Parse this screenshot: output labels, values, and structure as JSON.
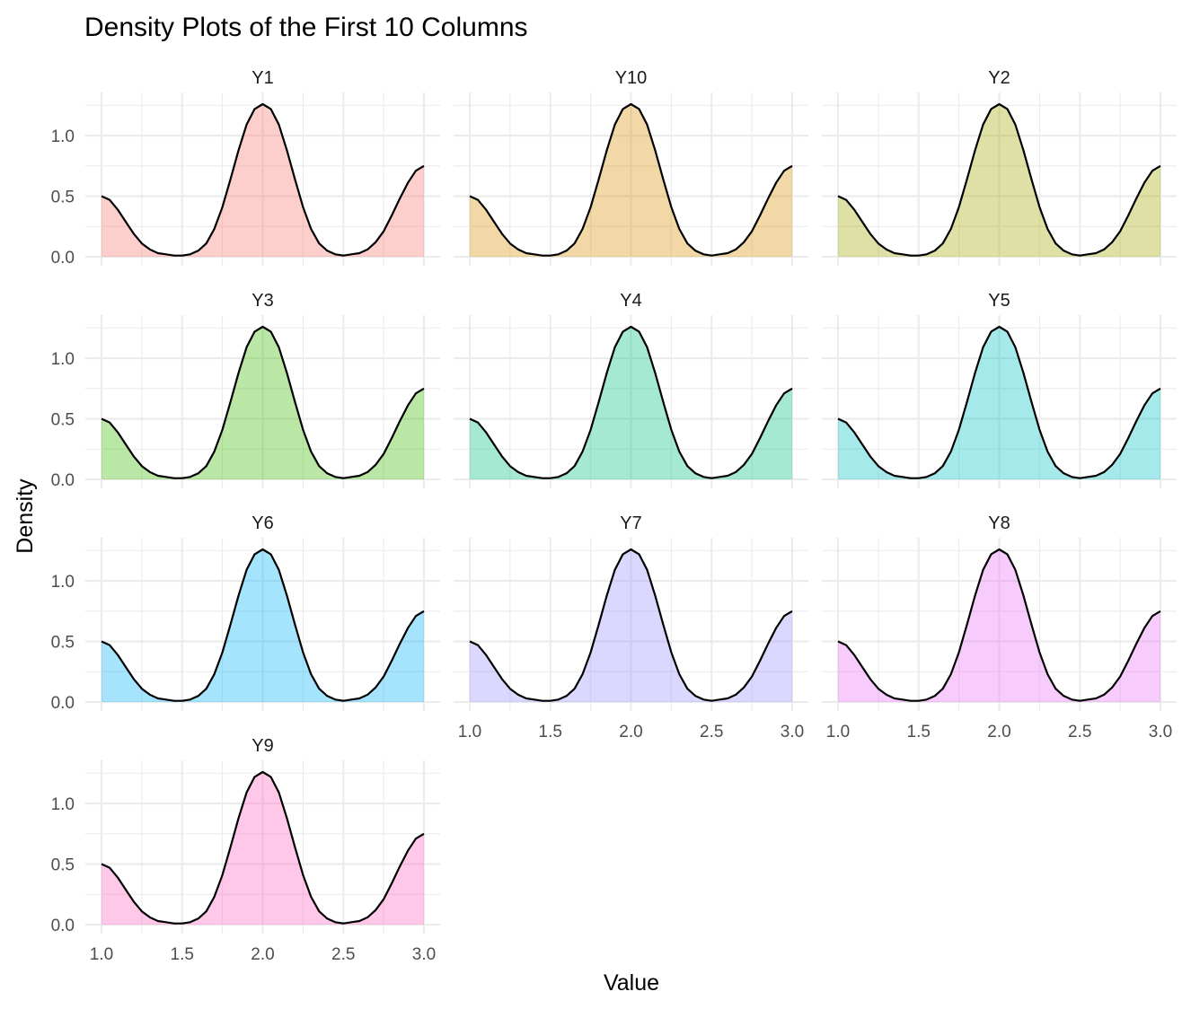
{
  "chart_data": {
    "type": "area",
    "title": "Density Plots of the First 10 Columns",
    "xlabel": "Value",
    "ylabel": "Density",
    "xlim": [
      1.0,
      3.0
    ],
    "ylim": [
      0,
      1.26
    ],
    "x_ticks": [
      "1.0",
      "1.5",
      "2.0",
      "2.5",
      "3.0"
    ],
    "y_ticks": [
      "0.0",
      "0.5",
      "1.0"
    ],
    "grid": true,
    "curve_points": {
      "x": [
        1.0,
        1.05,
        1.1,
        1.15,
        1.2,
        1.25,
        1.3,
        1.35,
        1.4,
        1.45,
        1.5,
        1.55,
        1.6,
        1.65,
        1.7,
        1.75,
        1.8,
        1.85,
        1.9,
        1.95,
        2.0,
        2.05,
        2.1,
        2.15,
        2.2,
        2.25,
        2.3,
        2.35,
        2.4,
        2.45,
        2.5,
        2.55,
        2.6,
        2.65,
        2.7,
        2.75,
        2.8,
        2.85,
        2.9,
        2.95,
        3.0
      ],
      "y": [
        0.5,
        0.47,
        0.39,
        0.29,
        0.19,
        0.11,
        0.06,
        0.03,
        0.02,
        0.01,
        0.01,
        0.02,
        0.05,
        0.11,
        0.23,
        0.41,
        0.64,
        0.88,
        1.09,
        1.22,
        1.26,
        1.22,
        1.09,
        0.88,
        0.64,
        0.41,
        0.23,
        0.11,
        0.05,
        0.02,
        0.01,
        0.02,
        0.03,
        0.06,
        0.12,
        0.21,
        0.34,
        0.48,
        0.61,
        0.71,
        0.75
      ]
    },
    "panels": [
      {
        "label": "Y1",
        "color": "#F8766D"
      },
      {
        "label": "Y10",
        "color": "#D89000"
      },
      {
        "label": "Y2",
        "color": "#A3A500"
      },
      {
        "label": "Y3",
        "color": "#39B600"
      },
      {
        "label": "Y4",
        "color": "#00BF7D"
      },
      {
        "label": "Y5",
        "color": "#00BFC4"
      },
      {
        "label": "Y6",
        "color": "#00B0F6"
      },
      {
        "label": "Y7",
        "color": "#9590FF"
      },
      {
        "label": "Y8",
        "color": "#E76BF3"
      },
      {
        "label": "Y9",
        "color": "#FF62BC"
      }
    ]
  }
}
